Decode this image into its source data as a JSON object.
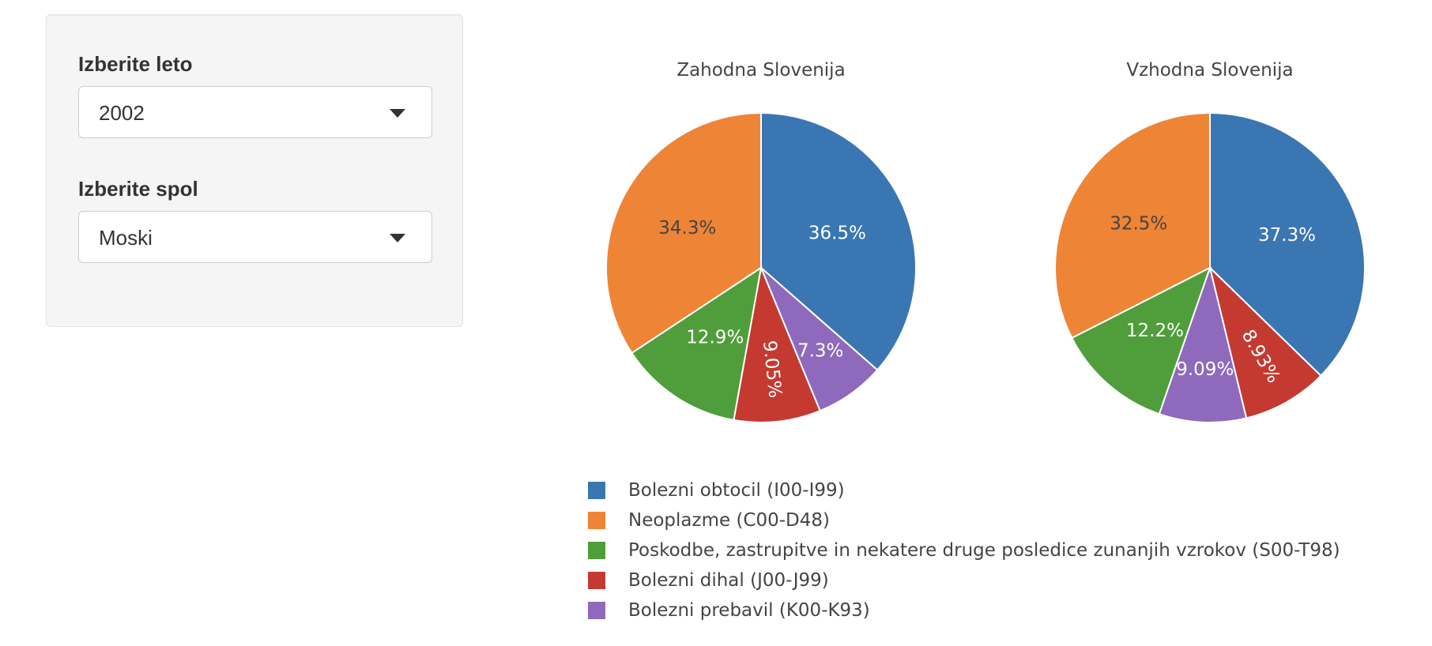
{
  "sidebar": {
    "year_label": "Izberite leto",
    "year_value": "2002",
    "sex_label": "Izberite spol",
    "sex_value": "Moski"
  },
  "chart_data": {
    "type": "pie",
    "categories": [
      "Bolezni obtocil (I00-I99)",
      "Neoplazme (C00-D48)",
      "Poskodbe, zastrupitve in nekatere druge posledice zunanjih vzrokov (S00-T98)",
      "Bolezni dihal (J00-J99)",
      "Bolezni prebavil (K00-K93)"
    ],
    "colors": [
      "#3a76b2",
      "#ee8436",
      "#4f9e3b",
      "#c43a31",
      "#8f69bb"
    ],
    "label_colors": [
      "#ffffff",
      "#444444",
      "#ffffff",
      "#ffffff",
      "#ffffff"
    ],
    "pies": [
      {
        "title": "Zahodna Slovenija",
        "slices": [
          {
            "category": "Bolezni obtocil (I00-I99)",
            "value": 36.5,
            "label": "36.5%"
          },
          {
            "category": "Bolezni prebavil (K00-K93)",
            "value": 7.3,
            "label": "7.3%"
          },
          {
            "category": "Bolezni dihal (J00-J99)",
            "value": 9.05,
            "label": "9.05%"
          },
          {
            "category": "Poskodbe, zastrupitve in nekatere druge posledice zunanjih vzrokov (S00-T98)",
            "value": 12.9,
            "label": "12.9%"
          },
          {
            "category": "Neoplazme (C00-D48)",
            "value": 34.3,
            "label": "34.3%"
          }
        ]
      },
      {
        "title": "Vzhodna Slovenija",
        "slices": [
          {
            "category": "Bolezni obtocil (I00-I99)",
            "value": 37.3,
            "label": "37.3%"
          },
          {
            "category": "Bolezni dihal (J00-J99)",
            "value": 8.93,
            "label": "8.93%"
          },
          {
            "category": "Bolezni prebavil (K00-K93)",
            "value": 9.09,
            "label": "9.09%"
          },
          {
            "category": "Poskodbe, zastrupitve in nekatere druge posledice zunanjih vzrokov (S00-T98)",
            "value": 12.2,
            "label": "12.2%"
          },
          {
            "category": "Neoplazme (C00-D48)",
            "value": 32.5,
            "label": "32.5%"
          }
        ]
      }
    ],
    "legend_position": "bottom"
  }
}
